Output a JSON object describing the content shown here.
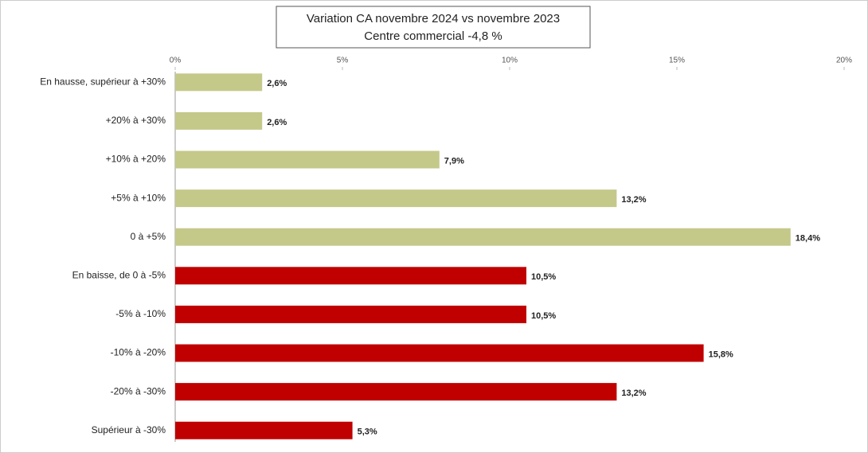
{
  "chart_data": {
    "type": "bar",
    "title": "Variation CA novembre 2024 vs novembre 2023",
    "subtitle": "Centre commercial  -4,8 %",
    "categories": [
      "En hausse, supérieur à +30%",
      "+20% à +30%",
      "+10% à +20%",
      "+5% à +10%",
      "0 à +5%",
      "En baisse, de 0 à -5%",
      "-5% à -10%",
      "-10% à -20%",
      "-20% à -30%",
      "Supérieur à -30%"
    ],
    "values": [
      2.6,
      2.6,
      7.9,
      13.2,
      18.4,
      10.5,
      10.5,
      15.8,
      13.2,
      5.3
    ],
    "value_labels": [
      "2,6%",
      "2,6%",
      "7,9%",
      "13,2%",
      "18,4%",
      "10,5%",
      "10,5%",
      "15,8%",
      "13,2%",
      "5,3%"
    ],
    "colors": [
      "#c4c98a",
      "#c4c98a",
      "#c4c98a",
      "#c4c98a",
      "#c4c98a",
      "#c00000",
      "#c00000",
      "#c00000",
      "#c00000",
      "#c00000"
    ],
    "xlim": [
      0,
      20
    ],
    "xticks": [
      {
        "value": 0,
        "label": "0%"
      },
      {
        "value": 5,
        "label": "5%"
      },
      {
        "value": 10,
        "label": "10%"
      },
      {
        "value": 15,
        "label": "15%"
      },
      {
        "value": 20,
        "label": "20%"
      }
    ]
  }
}
